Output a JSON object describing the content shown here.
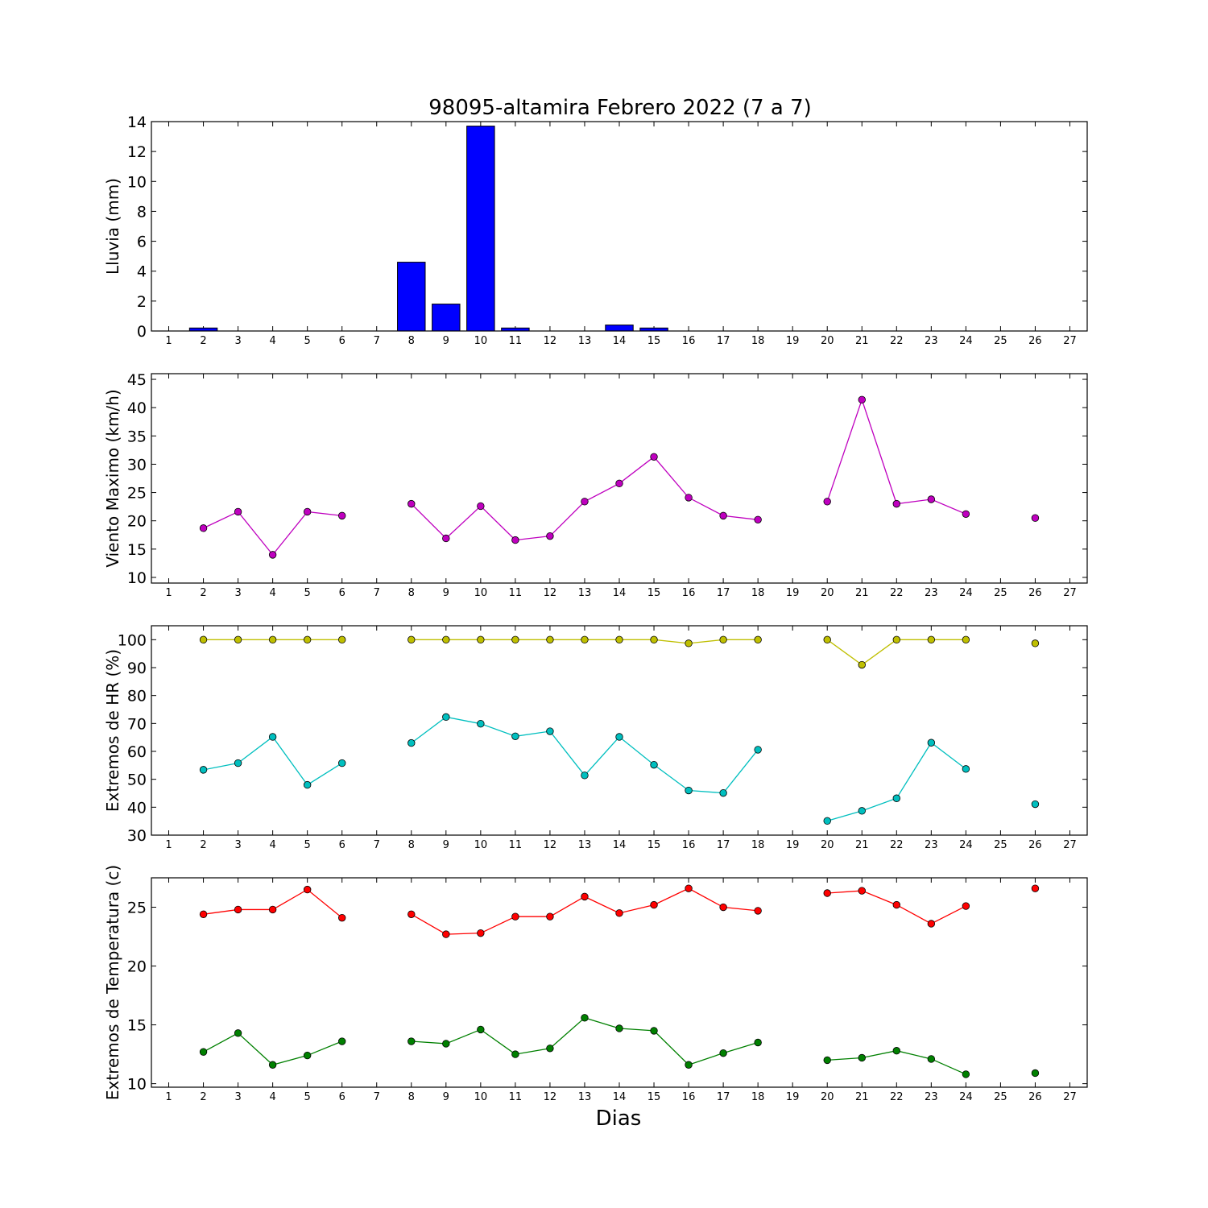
{
  "title": "98095-altamira Febrero 2022  (7 a 7)",
  "xlabel": "Dias",
  "colors": {
    "rain": "#0000ff",
    "wind": "#bf00bf",
    "hr_max": "#bfbf00",
    "hr_min": "#00bfbf",
    "t_max": "#ff0000",
    "t_min": "#008000"
  },
  "chart_data": [
    {
      "type": "bar",
      "ylabel": "Lluvia (mm)",
      "xlim": [
        0.5,
        27.5
      ],
      "ylim": [
        0,
        14
      ],
      "yticks": [
        0,
        2,
        4,
        6,
        8,
        10,
        12,
        14
      ],
      "x_ticks": [
        1,
        2,
        3,
        4,
        5,
        6,
        7,
        8,
        9,
        10,
        11,
        12,
        13,
        14,
        15,
        16,
        17,
        18,
        19,
        20,
        21,
        22,
        23,
        24,
        25,
        26,
        27
      ],
      "series": [
        {
          "color": "#0000ff",
          "x": [
            2,
            3,
            4,
            5,
            6,
            8,
            9,
            10,
            11,
            12,
            13,
            14,
            15,
            16,
            17,
            18,
            20,
            21,
            22,
            23,
            24,
            26
          ],
          "values": [
            0.2,
            0,
            0,
            0,
            0,
            4.6,
            1.8,
            13.7,
            0.2,
            0,
            0,
            0.4,
            0.2,
            0,
            0,
            0,
            0,
            0,
            0,
            0,
            0,
            0
          ]
        }
      ]
    },
    {
      "type": "line",
      "ylabel": "Viento Maximo (km/h)",
      "xlim": [
        0.5,
        27.5
      ],
      "ylim": [
        9,
        46
      ],
      "yticks": [
        10,
        15,
        20,
        25,
        30,
        35,
        40,
        45
      ],
      "x_ticks": [
        1,
        2,
        3,
        4,
        5,
        6,
        7,
        8,
        9,
        10,
        11,
        12,
        13,
        14,
        15,
        16,
        17,
        18,
        19,
        20,
        21,
        22,
        23,
        24,
        25,
        26,
        27
      ],
      "series": [
        {
          "color": "#bf00bf",
          "x": [
            2,
            3,
            4,
            5,
            6,
            7,
            8,
            9,
            10,
            11,
            12,
            13,
            14,
            15,
            16,
            17,
            18,
            19,
            20,
            21,
            22,
            23,
            24,
            25,
            26
          ],
          "values": [
            18.7,
            21.6,
            14.0,
            21.6,
            20.9,
            null,
            23.0,
            16.9,
            22.6,
            16.6,
            17.3,
            23.4,
            26.6,
            31.3,
            24.1,
            20.9,
            20.2,
            null,
            23.4,
            41.4,
            23.0,
            23.8,
            21.2,
            null,
            20.5
          ]
        }
      ]
    },
    {
      "type": "line",
      "ylabel": "Extremos de HR (%)",
      "xlim": [
        0.5,
        27.5
      ],
      "ylim": [
        30,
        105
      ],
      "yticks": [
        30,
        40,
        50,
        60,
        70,
        80,
        90,
        100
      ],
      "x_ticks": [
        1,
        2,
        3,
        4,
        5,
        6,
        7,
        8,
        9,
        10,
        11,
        12,
        13,
        14,
        15,
        16,
        17,
        18,
        19,
        20,
        21,
        22,
        23,
        24,
        25,
        26,
        27
      ],
      "series": [
        {
          "color": "#bfbf00",
          "x": [
            2,
            3,
            4,
            5,
            6,
            7,
            8,
            9,
            10,
            11,
            12,
            13,
            14,
            15,
            16,
            17,
            18,
            19,
            20,
            21,
            22,
            23,
            24,
            25,
            26
          ],
          "values": [
            100,
            100,
            100,
            100,
            100,
            null,
            100,
            100,
            100,
            100,
            100,
            100,
            100,
            100,
            98.7,
            100,
            100,
            null,
            100,
            91,
            100,
            100,
            100,
            null,
            98.7
          ]
        },
        {
          "color": "#00bfbf",
          "x": [
            2,
            3,
            4,
            5,
            6,
            7,
            8,
            9,
            10,
            11,
            12,
            13,
            14,
            15,
            16,
            17,
            18,
            19,
            20,
            21,
            22,
            23,
            24,
            25,
            26
          ],
          "values": [
            53.4,
            55.8,
            65.2,
            48.0,
            55.8,
            null,
            63.0,
            72.3,
            69.9,
            65.4,
            67.2,
            51.4,
            65.2,
            55.2,
            46.0,
            45.1,
            60.6,
            null,
            35.1,
            38.7,
            43.2,
            63.1,
            53.7,
            null,
            41.1
          ]
        }
      ]
    },
    {
      "type": "line",
      "ylabel": "Extremos de Temperatura (c)",
      "xlim": [
        0.5,
        27.5
      ],
      "ylim": [
        9.7,
        27.5
      ],
      "yticks": [
        10,
        15,
        20,
        25
      ],
      "x_ticks": [
        1,
        2,
        3,
        4,
        5,
        6,
        7,
        8,
        9,
        10,
        11,
        12,
        13,
        14,
        15,
        16,
        17,
        18,
        19,
        20,
        21,
        22,
        23,
        24,
        25,
        26,
        27
      ],
      "series": [
        {
          "color": "#ff0000",
          "x": [
            2,
            3,
            4,
            5,
            6,
            7,
            8,
            9,
            10,
            11,
            12,
            13,
            14,
            15,
            16,
            17,
            18,
            19,
            20,
            21,
            22,
            23,
            24,
            25,
            26
          ],
          "values": [
            24.4,
            24.8,
            24.8,
            26.5,
            24.1,
            null,
            24.4,
            22.7,
            22.8,
            24.2,
            24.2,
            25.9,
            24.5,
            25.2,
            26.6,
            25.0,
            24.7,
            null,
            26.2,
            26.4,
            25.2,
            23.6,
            25.1,
            null,
            26.6
          ]
        },
        {
          "color": "#008000",
          "x": [
            2,
            3,
            4,
            5,
            6,
            7,
            8,
            9,
            10,
            11,
            12,
            13,
            14,
            15,
            16,
            17,
            18,
            19,
            20,
            21,
            22,
            23,
            24,
            25,
            26
          ],
          "values": [
            12.7,
            14.3,
            11.6,
            12.4,
            13.6,
            null,
            13.6,
            13.4,
            14.6,
            12.5,
            13.0,
            15.6,
            14.7,
            14.5,
            11.6,
            12.6,
            13.5,
            null,
            12.0,
            12.2,
            12.8,
            12.1,
            10.8,
            null,
            10.9
          ]
        }
      ]
    }
  ]
}
